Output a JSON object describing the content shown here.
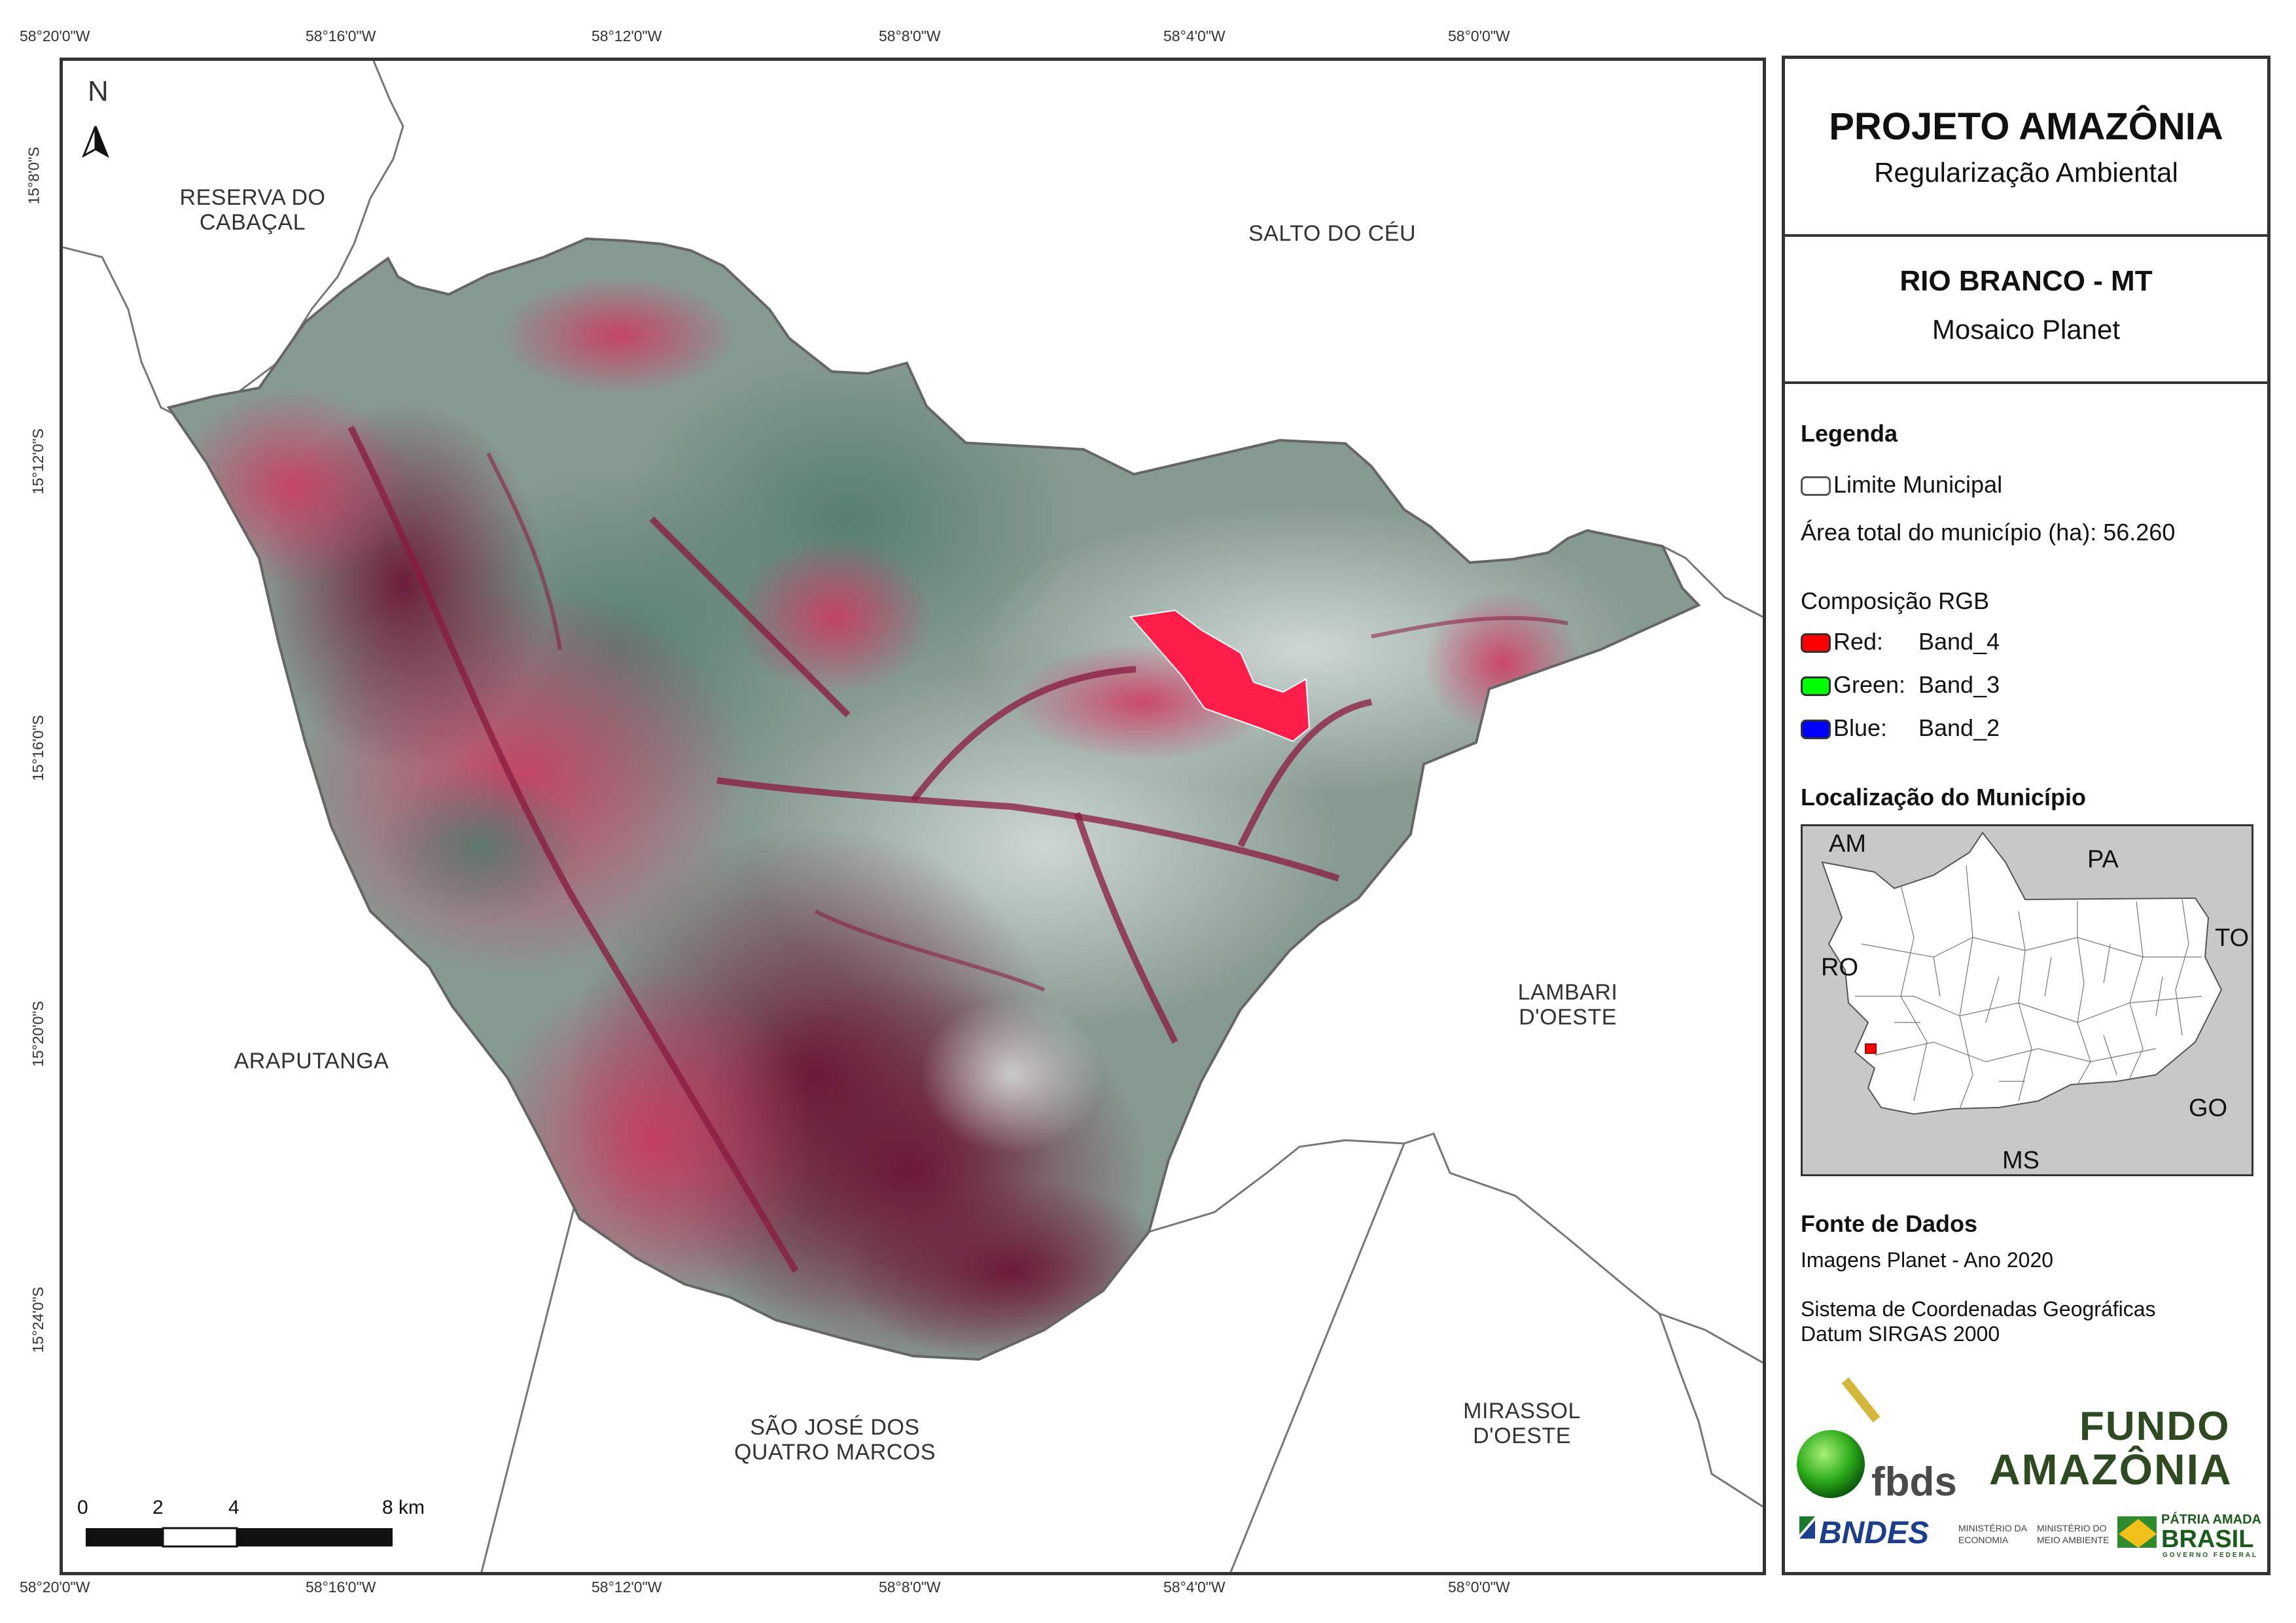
{
  "map": {
    "top_ticks": [
      "58°20'0\"W",
      "58°16'0\"W",
      "58°12'0\"W",
      "58°8'0\"W",
      "58°4'0\"W",
      "58°0'0\"W"
    ],
    "bottom_ticks": [
      "58°20'0\"W",
      "58°16'0\"W",
      "58°12'0\"W",
      "58°8'0\"W",
      "58°4'0\"W",
      "58°0'0\"W"
    ],
    "left_ticks": [
      "15°8'0\"S",
      "15°12'0\"S",
      "15°16'0\"S",
      "15°20'0\"S",
      "15°24'0\"S"
    ],
    "north_arrow": "N",
    "neighbors": {
      "reserva": "RESERVA DO\nCABAÇAL",
      "salto": "SALTO DO CÉU",
      "araputanga": "ARAPUTANGA",
      "lambari": "LAMBARI\nD'OESTE",
      "sao_jose": "SÃO JOSÉ DOS\nQUATRO MARCOS",
      "mirassol": "MIRASSOL\nD'OESTE"
    },
    "scale": {
      "labels": [
        "0",
        "2",
        "4",
        "8 km"
      ]
    },
    "colors": {
      "imagery_dark": "#8c1a3d",
      "imagery_mid": "#7a8c85",
      "imagery_light": "#b9c9c2",
      "highlight": "#ff1e4a"
    }
  },
  "panel": {
    "title": "PROJETO AMAZÔNIA",
    "subtitle": "Regularização Ambiental",
    "municipality": "RIO BRANCO - MT",
    "product": "Mosaico Planet",
    "legend_heading": "Legenda",
    "legend_limit": "Limite Municipal",
    "area_text": "Área total do município (ha): 56.260",
    "rgb_heading": "Composição RGB",
    "rgb": [
      {
        "channel": "Red:",
        "band": "Band_4",
        "color": "#ff0000"
      },
      {
        "channel": "Green:",
        "band": "Band_3",
        "color": "#00ff00"
      },
      {
        "channel": "Blue:",
        "band": "Band_2",
        "color": "#0000ff"
      }
    ],
    "location_heading": "Localização do Município",
    "states": [
      "AM",
      "PA",
      "TO",
      "RO",
      "GO",
      "MS"
    ],
    "sources_heading": "Fonte de Dados",
    "sources_line": "Imagens Planet - Ano 2020",
    "crs_line1": "Sistema de Coordenadas Geográficas",
    "crs_line2": "Datum SIRGAS 2000",
    "logos": {
      "fbds": "fbds",
      "fundo1": "FUNDO",
      "fundo2": "AMAZÔNIA",
      "bndes": "BNDES",
      "min1_a": "MINISTÉRIO DA",
      "min1_b": "ECONOMIA",
      "min2_a": "MINISTÉRIO DO",
      "min2_b": "MEIO AMBIENTE",
      "brasil_a": "PÁTRIA AMADA",
      "brasil_b": "BRASIL",
      "brasil_c": "GOVERNO FEDERAL"
    }
  }
}
